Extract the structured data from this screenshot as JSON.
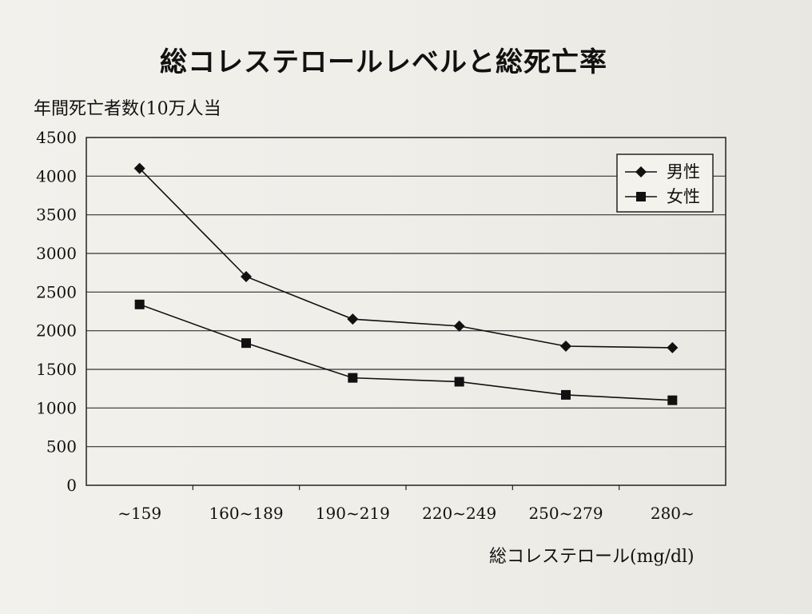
{
  "chart_data": {
    "type": "line",
    "title": "総コレステロールレベルと総死亡率",
    "ylabel": "年間死亡者数(10万人当",
    "xlabel": "総コレステロール(mg/dl)",
    "categories": [
      "~159",
      "160~189",
      "190~219",
      "220~249",
      "250~279",
      "280~"
    ],
    "ylim": [
      0,
      4500
    ],
    "yticks": [
      0,
      500,
      1000,
      1500,
      2000,
      2500,
      3000,
      3500,
      4000,
      4500
    ],
    "grid": true,
    "legend_position": "top-right",
    "series": [
      {
        "name": "男性",
        "marker": "diamond",
        "values": [
          4100,
          2700,
          2150,
          2060,
          1800,
          1780
        ]
      },
      {
        "name": "女性",
        "marker": "square",
        "values": [
          2340,
          1840,
          1390,
          1340,
          1170,
          1100
        ]
      }
    ]
  }
}
